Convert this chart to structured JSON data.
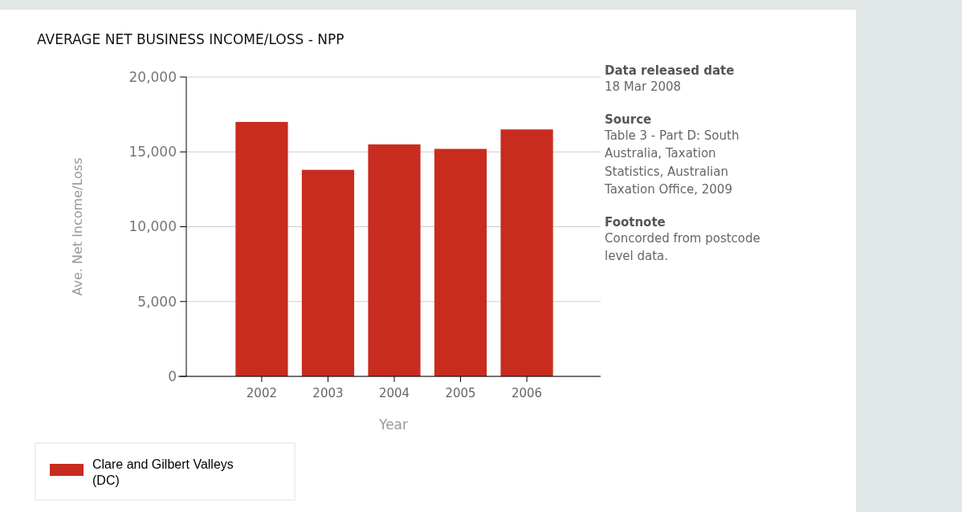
{
  "chart_data": {
    "type": "bar",
    "title": "AVERAGE NET BUSINESS INCOME/LOSS - NPP",
    "xlabel": "Year",
    "ylabel": "Ave. Net Income/Loss",
    "categories": [
      "2002",
      "2003",
      "2004",
      "2005",
      "2006"
    ],
    "series": [
      {
        "name": "Clare and Gilbert Valleys (DC)",
        "color": "#c82c1e",
        "values": [
          17000,
          13800,
          15500,
          15200,
          16500
        ]
      }
    ],
    "ylim": [
      0,
      20000
    ],
    "yticks": [
      {
        "value": 0,
        "label": "0"
      },
      {
        "value": 5000,
        "label": "5,000"
      },
      {
        "value": 10000,
        "label": "10,000"
      },
      {
        "value": 15000,
        "label": "15,000"
      },
      {
        "value": 20000,
        "label": "20,000"
      }
    ],
    "grid": "y",
    "legend": "bottom left",
    "annotations": [
      "Data released date",
      "18 Mar 2008",
      "Source",
      "Table 3 - Part D: South Australia, Taxation Statistics, Australian Taxation Office, 2009",
      "Footnote",
      "Concorded from postcode level data."
    ]
  }
}
